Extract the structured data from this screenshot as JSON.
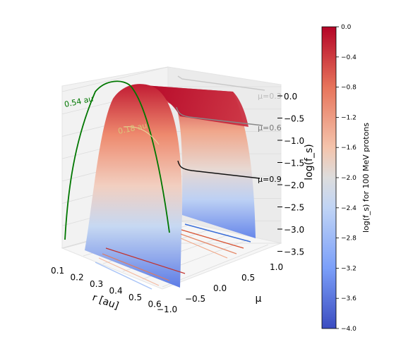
{
  "chart_data": {
    "type": "surface",
    "x_axis": {
      "label": "r [au]",
      "ticks": [
        "0.1",
        "0.2",
        "0.3",
        "0.4",
        "0.5",
        "0.6"
      ],
      "range": [
        0.1,
        0.65
      ]
    },
    "y_axis": {
      "label": "μ",
      "ticks": [
        "−1.0",
        "−0.5",
        "0.0",
        "0.5",
        "1.0"
      ],
      "range": [
        -1.0,
        1.0
      ]
    },
    "z_axis": {
      "label": "log(f_s)",
      "ticks": [
        "0.0",
        "−0.5",
        "−1.0",
        "−1.5",
        "−2.0",
        "−2.5",
        "−3.0",
        "−3.5"
      ],
      "range": [
        -3.5,
        0.0
      ]
    },
    "colorbar": {
      "label": "log(f_s) for 100 MeV protons",
      "range": [
        -4.0,
        0.0
      ],
      "ticks": [
        "0.0",
        "−0.4",
        "−0.8",
        "−1.2",
        "−1.6",
        "−2.0",
        "−2.4",
        "−2.8",
        "−3.2",
        "−3.6",
        "−4.0"
      ],
      "colors": {
        "high": "#b40426",
        "mid": "#dddddd",
        "low": "#3b4cc0"
      }
    },
    "annotations": [
      {
        "text": "0.54 au",
        "color": "#007700"
      },
      {
        "text": "0.18 au",
        "color": "#d9c77a"
      },
      {
        "text": "μ=0.3",
        "color": "#bbbbbb"
      },
      {
        "text": "μ=0.6",
        "color": "#777777"
      },
      {
        "text": "μ=0.9",
        "color": "#000000"
      }
    ],
    "contour_levels_on_floor": [
      -3.5,
      -3.0,
      -2.5,
      -2.0,
      -1.5
    ],
    "grid": true
  }
}
